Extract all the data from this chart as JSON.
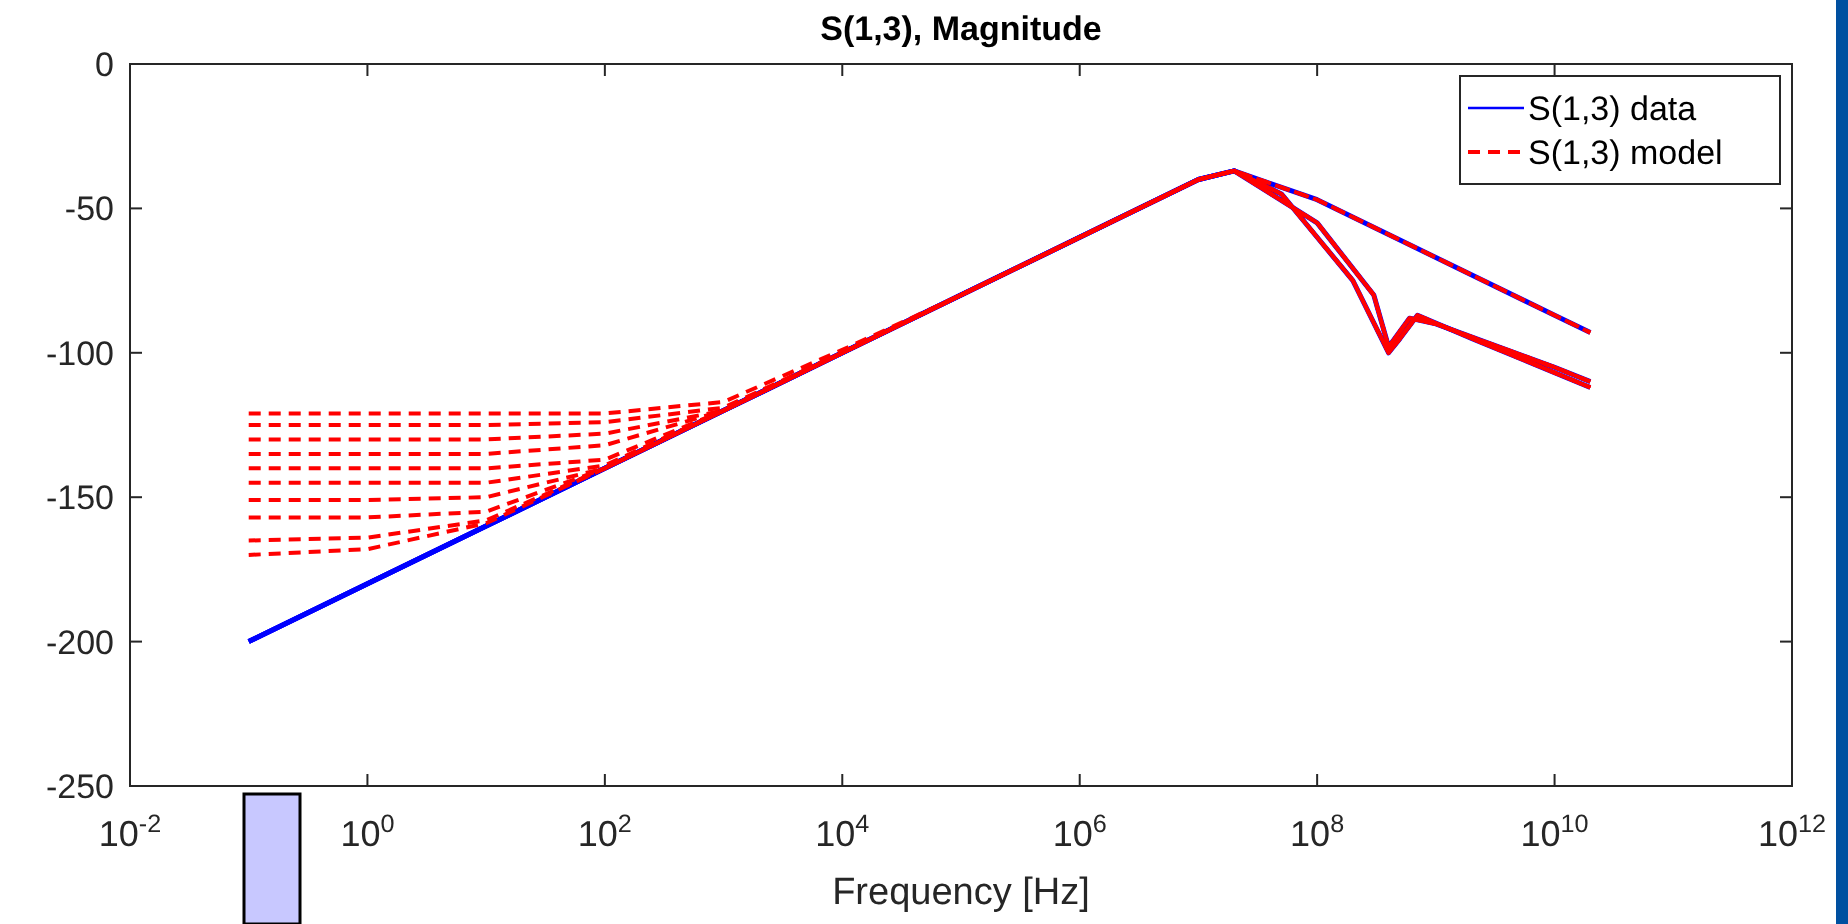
{
  "chart_data": {
    "type": "line",
    "title": "S(1,3), Magnitude",
    "xlabel": "Frequency [Hz]",
    "log": "x",
    "grid": false,
    "legend": "top right",
    "line_style": "solid",
    "marker": "none",
    "xlim": [
      0.01,
      1000000000000
    ],
    "ylim": [
      -250,
      0
    ],
    "xticks": [
      {
        "value": 0.01,
        "label": "10$^{-2}$"
      },
      {
        "value": 1,
        "label": "10$^{0}$"
      },
      {
        "value": 100,
        "label": "10$^{2}$"
      },
      {
        "value": 10000,
        "label": "10$^{4}$"
      },
      {
        "value": 1000000,
        "label": "10$^{6}$"
      },
      {
        "value": 100000000,
        "label": "10$^{8}$"
      },
      {
        "value": 10000000000,
        "label": "10$^{10}$"
      },
      {
        "value": 1000000000000,
        "label": "10$^{12}$"
      }
    ],
    "yticks": [
      -250,
      -200,
      -150,
      -100,
      -50,
      0
    ],
    "series": [
      {
        "name": "S(1,3) data",
        "color": "#0000ff",
        "x": [
          0.1,
          1,
          10,
          100,
          1000,
          10000,
          100000,
          1000000,
          10000000,
          20000000,
          100000000,
          1000000000,
          10000000000,
          20000000000
        ],
        "values": [
          -200,
          -180,
          -160,
          -140,
          -120,
          -100,
          -80,
          -60,
          -40,
          -37,
          -47,
          -67,
          -87,
          -93
        ]
      },
      {
        "color": "#0000ff",
        "x": [
          0.1,
          1,
          10,
          100,
          1000,
          10000,
          100000,
          1000000,
          10000000,
          20000000,
          100000000,
          300000000,
          400000000,
          600000000,
          1000000000,
          10000000000,
          20000000000
        ],
        "values": [
          -200,
          -180,
          -160,
          -140,
          -120,
          -100,
          -80,
          -60,
          -40,
          -37,
          -55,
          -80,
          -98,
          -88,
          -90,
          -105,
          -110
        ]
      },
      {
        "color": "#0000ff",
        "x": [
          0.1,
          1,
          10,
          100,
          1000,
          10000,
          100000,
          1000000,
          10000000,
          20000000,
          50000000,
          100000000,
          200000000,
          400000000,
          500000000,
          700000000,
          2000000000,
          20000000000
        ],
        "values": [
          -200,
          -180,
          -160,
          -140,
          -120,
          -100,
          -80,
          -60,
          -40,
          -37,
          -45,
          -60,
          -75,
          -100,
          -95,
          -87,
          -95,
          -112
        ]
      },
      {
        "name": "S(1,3) model",
        "color": "#ff0000",
        "line_style": "dashed",
        "x": [
          0.1,
          1,
          10,
          100,
          1000,
          10000,
          100000,
          1000000,
          10000000,
          20000000,
          100000000,
          1000000000,
          10000000000,
          20000000000
        ],
        "values": [
          -121,
          -121,
          -121,
          -121,
          -117,
          -99,
          -80,
          -60,
          -40,
          -37,
          -47,
          -67,
          -87,
          -93
        ]
      },
      {
        "color": "#ff0000",
        "line_style": "dashed",
        "x": [
          0.1,
          1,
          10,
          100,
          1000,
          10000,
          100000,
          1000000,
          10000000,
          20000000,
          100000000,
          300000000,
          400000000,
          600000000,
          1000000000,
          10000000000,
          20000000000
        ],
        "values": [
          -125,
          -125,
          -125,
          -124,
          -119,
          -100,
          -80,
          -60,
          -40,
          -37,
          -55,
          -80,
          -98,
          -88,
          -90,
          -105,
          -110
        ]
      },
      {
        "color": "#ff0000",
        "line_style": "dashed",
        "x": [
          0.1,
          1,
          10,
          100,
          1000,
          10000,
          100000,
          1000000,
          10000000,
          20000000,
          50000000,
          100000000,
          200000000,
          400000000,
          500000000,
          700000000,
          2000000000,
          20000000000
        ],
        "values": [
          -130,
          -130,
          -130,
          -128,
          -120,
          -100,
          -80,
          -60,
          -40,
          -37,
          -45,
          -60,
          -75,
          -100,
          -95,
          -87,
          -95,
          -112
        ]
      },
      {
        "color": "#ff0000",
        "line_style": "dashed",
        "x": [
          0.1,
          1,
          10,
          100,
          1000,
          10000,
          100000,
          1000000,
          10000000,
          20000000,
          100000000,
          300000000,
          400000000,
          600000000,
          1000000000,
          10000000000,
          20000000000
        ],
        "values": [
          -135,
          -135,
          -135,
          -132,
          -120,
          -100,
          -80,
          -60,
          -40,
          -37,
          -55,
          -80,
          -98,
          -88,
          -90,
          -105,
          -110
        ]
      },
      {
        "color": "#ff0000",
        "line_style": "dashed",
        "x": [
          0.1,
          1,
          10,
          100,
          1000,
          10000,
          100000,
          1000000,
          10000000,
          20000000,
          50000000,
          100000000,
          200000000,
          400000000,
          500000000,
          700000000,
          2000000000,
          20000000000
        ],
        "values": [
          -140,
          -140,
          -140,
          -137,
          -120,
          -100,
          -80,
          -60,
          -40,
          -37,
          -45,
          -60,
          -75,
          -100,
          -95,
          -87,
          -95,
          -112
        ]
      },
      {
        "color": "#ff0000",
        "line_style": "dashed",
        "x": [
          0.1,
          1,
          10,
          100,
          1000,
          10000,
          100000,
          1000000,
          10000000,
          20000000,
          100000000,
          1000000000,
          10000000000,
          20000000000
        ],
        "values": [
          -145,
          -145,
          -145,
          -139,
          -120,
          -100,
          -80,
          -60,
          -40,
          -37,
          -47,
          -67,
          -87,
          -93
        ]
      },
      {
        "color": "#ff0000",
        "line_style": "dashed",
        "x": [
          0.1,
          1,
          10,
          100,
          1000,
          10000,
          100000,
          1000000,
          10000000,
          20000000,
          100000000,
          300000000,
          400000000,
          600000000,
          1000000000,
          10000000000,
          20000000000
        ],
        "values": [
          -151,
          -151,
          -150,
          -140,
          -120,
          -100,
          -80,
          -60,
          -40,
          -37,
          -55,
          -80,
          -98,
          -88,
          -90,
          -105,
          -110
        ]
      },
      {
        "color": "#ff0000",
        "line_style": "dashed",
        "x": [
          0.1,
          1,
          10,
          100,
          1000,
          10000,
          100000,
          1000000,
          10000000,
          20000000,
          50000000,
          100000000,
          200000000,
          400000000,
          500000000,
          700000000,
          2000000000,
          20000000000
        ],
        "values": [
          -157,
          -157,
          -155,
          -140,
          -120,
          -100,
          -80,
          -60,
          -40,
          -37,
          -45,
          -60,
          -75,
          -100,
          -95,
          -87,
          -95,
          -112
        ]
      },
      {
        "color": "#ff0000",
        "line_style": "dashed",
        "x": [
          0.1,
          1,
          10,
          100,
          1000,
          10000,
          100000,
          1000000,
          10000000,
          20000000,
          100000000,
          300000000,
          400000000,
          600000000,
          1000000000,
          10000000000,
          20000000000
        ],
        "values": [
          -165,
          -164,
          -158,
          -140,
          -120,
          -100,
          -80,
          -60,
          -40,
          -37,
          -55,
          -80,
          -98,
          -88,
          -90,
          -105,
          -110
        ]
      },
      {
        "color": "#ff0000",
        "line_style": "dashed",
        "x": [
          0.1,
          1,
          10,
          100,
          1000,
          10000,
          100000,
          1000000,
          10000000,
          20000000,
          50000000,
          100000000,
          200000000,
          400000000,
          500000000,
          700000000,
          2000000000,
          20000000000
        ],
        "values": [
          -170,
          -168,
          -159,
          -140,
          -120,
          -100,
          -80,
          -60,
          -40,
          -37,
          -45,
          -60,
          -75,
          -100,
          -95,
          -87,
          -95,
          -112
        ]
      }
    ]
  }
}
